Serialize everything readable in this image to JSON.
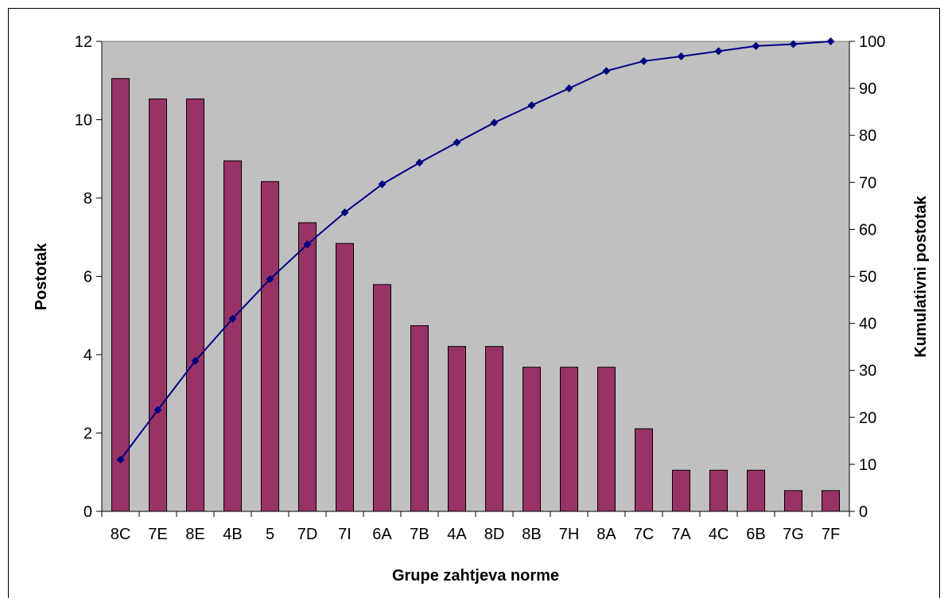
{
  "chart_data": {
    "type": "bar",
    "xlabel": "Grupe zahtjeva norme",
    "ylabel": "Postotak",
    "y2label": "Kumulativni postotak",
    "categories": [
      "8C",
      "7E",
      "8E",
      "4B",
      "5",
      "7D",
      "7I",
      "6A",
      "7B",
      "4A",
      "8D",
      "8B",
      "7H",
      "8A",
      "7C",
      "7A",
      "4C",
      "6B",
      "7G",
      "7F"
    ],
    "series": [
      {
        "type": "bar",
        "axis": "left",
        "values": [
          11.05,
          10.53,
          10.53,
          8.95,
          8.42,
          7.37,
          6.84,
          5.79,
          4.74,
          4.21,
          4.21,
          3.68,
          3.68,
          3.68,
          2.11,
          1.05,
          1.05,
          1.05,
          0.53,
          0.53
        ]
      },
      {
        "type": "line",
        "axis": "right",
        "values": [
          11.0,
          21.6,
          32.0,
          41.0,
          49.4,
          56.8,
          63.6,
          69.6,
          74.2,
          78.5,
          82.7,
          86.4,
          90.0,
          93.7,
          95.8,
          96.8,
          97.9,
          99.0,
          99.4,
          100
        ]
      }
    ],
    "ylim": [
      0,
      12
    ],
    "yticks": [
      "0",
      "2",
      "4",
      "6",
      "8",
      "10",
      "12"
    ],
    "y2lim": [
      0,
      100
    ],
    "y2ticks": [
      "0",
      "10",
      "20",
      "30",
      "40",
      "50",
      "60",
      "70",
      "80",
      "90",
      "100"
    ],
    "grid": false,
    "legend": "none",
    "colors": {
      "bar": "#993366",
      "line": "#000080",
      "plot_bg": "#c0c0c0"
    }
  }
}
